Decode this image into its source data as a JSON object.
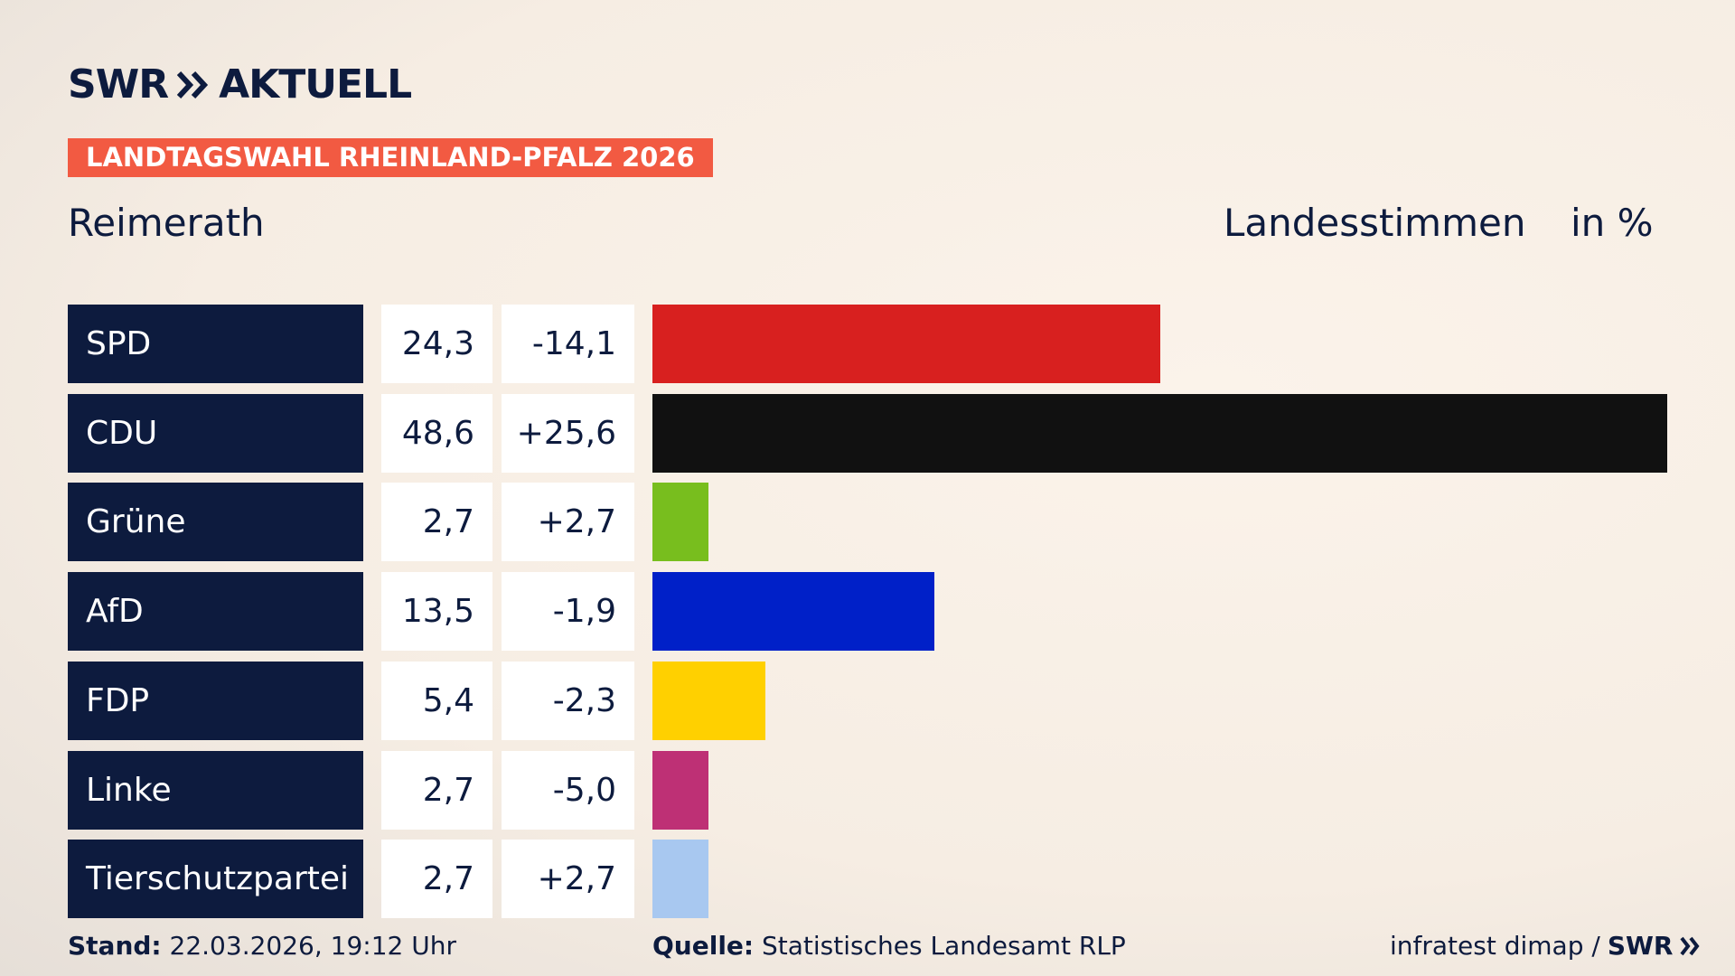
{
  "header": {
    "brand": "SWR",
    "brand_suffix": "AKTUELL",
    "tag": "LANDTAGSWAHL RHEINLAND-PFALZ 2026"
  },
  "chart_data": {
    "type": "bar",
    "orientation": "horizontal",
    "subtitle": "Reimerath",
    "measure_label": "Landesstimmen",
    "unit_label": "in %",
    "categories": [
      "SPD",
      "CDU",
      "Grüne",
      "AfD",
      "FDP",
      "Linke",
      "Tierschutzpartei"
    ],
    "values": [
      24.3,
      48.6,
      2.7,
      13.5,
      5.4,
      2.7,
      2.7
    ],
    "value_labels": [
      "24,3",
      "48,6",
      "2,7",
      "13,5",
      "5,4",
      "2,7",
      "2,7"
    ],
    "changes": [
      -14.1,
      25.6,
      2.7,
      -1.9,
      -2.3,
      -5.0,
      2.7
    ],
    "change_labels": [
      "-14,1",
      "+25,6",
      "+2,7",
      "-1,9",
      "-2,3",
      "-5,0",
      "+2,7"
    ],
    "colors": [
      "#d8201f",
      "#111111",
      "#78be1e",
      "#0020c8",
      "#ffd000",
      "#be3075",
      "#a8c8f0"
    ]
  },
  "footer": {
    "date_label": "Stand:",
    "date": "22.03.2026, 19:12 Uhr",
    "source_label": "Quelle:",
    "source": "Statistisches Landesamt RLP",
    "credit": "infratest dimap /",
    "credit_brand": "SWR"
  }
}
